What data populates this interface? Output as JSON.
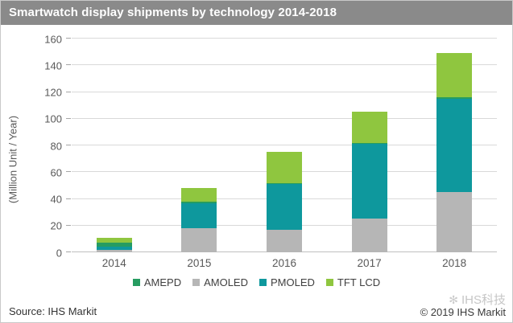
{
  "header": {
    "title": "Smartwatch display shipments by technology 2014-2018",
    "bg_color": "#8a8a8a",
    "text_color": "#ffffff"
  },
  "chart_data": {
    "type": "bar",
    "stacked": true,
    "title": "Smartwatch display shipments by technology 2014-2018",
    "xlabel": "",
    "ylabel": "(Million Unit / Year)",
    "ylim": [
      0,
      160
    ],
    "ytick_step": 20,
    "yticks": [
      0,
      20,
      40,
      60,
      80,
      100,
      120,
      140,
      160
    ],
    "grid": true,
    "legend_position": "bottom",
    "legend_order": [
      "AMEPD",
      "AMOLED",
      "PMOLED",
      "TFT LCD"
    ],
    "categories": [
      "2014",
      "2015",
      "2016",
      "2017",
      "2018"
    ],
    "series": [
      {
        "name": "AMOLED",
        "color": "#b6b6b6",
        "values": [
          2,
          18,
          17,
          25,
          45
        ]
      },
      {
        "name": "PMOLED",
        "color": "#0e989d",
        "values": [
          2.5,
          19,
          34,
          56,
          70
        ]
      },
      {
        "name": "AMEPD",
        "color": "#269c61",
        "values": [
          2.5,
          1,
          1,
          1,
          1
        ]
      },
      {
        "name": "TFT LCD",
        "color": "#8fc63f",
        "values": [
          4,
          10,
          23,
          23,
          33
        ]
      }
    ],
    "totals": [
      11,
      48,
      75,
      105,
      149
    ]
  },
  "footer": {
    "source": "Source: IHS Markit",
    "watermark": "IHS科技",
    "watermark_logo": "✻",
    "copyright": "© 2019 IHS Markit"
  },
  "style_colors": {
    "gridline": "#d9d9d9",
    "axis_labels": "#595959",
    "legend_text": "#404040"
  }
}
